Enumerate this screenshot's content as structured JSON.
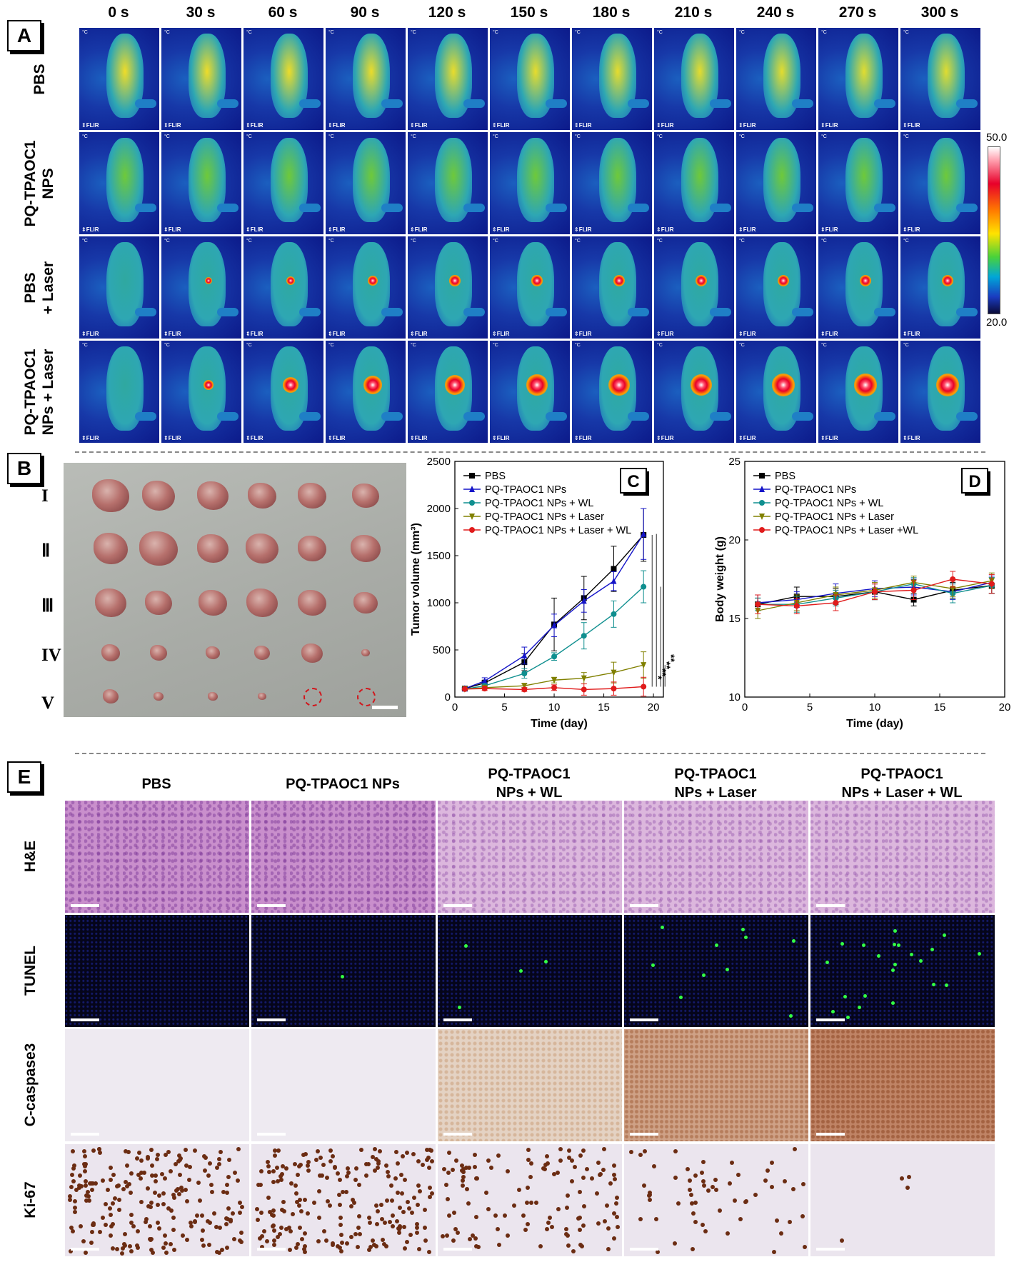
{
  "panels": {
    "a": "A",
    "b": "B",
    "c": "C",
    "d": "D",
    "e": "E"
  },
  "thermal": {
    "times": [
      "0 s",
      "30 s",
      "60 s",
      "90 s",
      "120 s",
      "150 s",
      "180 s",
      "210 s",
      "240 s",
      "270 s",
      "300 s"
    ],
    "groups": [
      "PBS",
      "PQ-TPAOC1 NPs",
      "PBS + Laser",
      "PQ-TPAOC1 NPs + Laser"
    ],
    "hotspot_level": [
      [
        0,
        0,
        0,
        0,
        0,
        0,
        0,
        0,
        0,
        0,
        0
      ],
      [
        0,
        0,
        0,
        0,
        0,
        0,
        0,
        0,
        0,
        0,
        0
      ],
      [
        0,
        0.15,
        0.25,
        0.3,
        0.35,
        0.35,
        0.38,
        0.4,
        0.4,
        0.4,
        0.42
      ],
      [
        0,
        0.3,
        0.6,
        0.75,
        0.85,
        0.9,
        0.92,
        0.95,
        0.97,
        0.98,
        1.0
      ]
    ],
    "camera_mark": "⇕FLIR",
    "unit_mark": "°C",
    "colorbar_max": "50.0",
    "colorbar_min": "20.0"
  },
  "photo": {
    "groups": [
      "I",
      "II",
      "III",
      "IV",
      "V"
    ],
    "tumor_counts": [
      6,
      6,
      6,
      6,
      4
    ],
    "absent_in_group_V": 2
  },
  "chart_data": [
    {
      "type": "line",
      "panel": "C",
      "xlabel": "Time (day)",
      "ylabel": "Tumor volume (mm³)",
      "xlim": [
        0,
        21
      ],
      "ylim": [
        0,
        2500
      ],
      "xticks": [
        0,
        5,
        10,
        15,
        20
      ],
      "yticks": [
        0,
        500,
        1000,
        1500,
        2000,
        2500
      ],
      "legend_position": "top-left",
      "x": [
        1,
        3,
        7,
        10,
        13,
        16,
        19
      ],
      "series": [
        {
          "name": "PBS",
          "color": "#000000",
          "marker": "square",
          "values": [
            90,
            150,
            370,
            770,
            1050,
            1360,
            1720
          ],
          "err": [
            10,
            30,
            90,
            280,
            230,
            240,
            280
          ]
        },
        {
          "name": "PQ-TPAOC1 NPs",
          "color": "#1414c8",
          "marker": "triangle-up",
          "values": [
            90,
            170,
            440,
            760,
            1020,
            1230,
            1730
          ],
          "err": [
            10,
            35,
            90,
            120,
            120,
            100,
            270
          ]
        },
        {
          "name": "PQ-TPAOC1 NPs + WL",
          "color": "#0f8f8f",
          "marker": "circle",
          "values": [
            85,
            120,
            250,
            430,
            650,
            880,
            1170
          ],
          "err": [
            10,
            20,
            50,
            40,
            140,
            140,
            170
          ]
        },
        {
          "name": "PQ-TPAOC1 NPs + Laser",
          "color": "#808000",
          "marker": "triangle-down",
          "values": [
            85,
            100,
            120,
            180,
            200,
            260,
            340
          ],
          "err": [
            10,
            10,
            20,
            30,
            60,
            110,
            140
          ]
        },
        {
          "name": "PQ-TPAOC1 NPs + Laser + WL",
          "color": "#e01b1b",
          "marker": "circle",
          "values": [
            85,
            90,
            80,
            100,
            80,
            90,
            110
          ],
          "err": [
            10,
            20,
            20,
            30,
            60,
            70,
            100
          ]
        }
      ],
      "significance": [
        "*",
        "**",
        "**",
        "**"
      ]
    },
    {
      "type": "line",
      "panel": "D",
      "xlabel": "Time (day)",
      "ylabel": "Body weight (g)",
      "xlim": [
        0,
        20
      ],
      "ylim": [
        10,
        25
      ],
      "xticks": [
        0,
        5,
        10,
        15,
        20
      ],
      "yticks": [
        10,
        15,
        20,
        25
      ],
      "legend_position": "top-left",
      "x": [
        1,
        4,
        7,
        10,
        13,
        16,
        19
      ],
      "series": [
        {
          "name": "PBS",
          "color": "#000000",
          "marker": "square",
          "values": [
            15.9,
            16.4,
            16.4,
            16.7,
            16.2,
            16.8,
            17.1
          ],
          "err": [
            0.4,
            0.6,
            0.5,
            0.5,
            0.4,
            0.5,
            0.5
          ]
        },
        {
          "name": "PQ-TPAOC1 NPs",
          "color": "#1414c8",
          "marker": "triangle-up",
          "values": [
            16.0,
            16.2,
            16.6,
            16.9,
            17.0,
            16.7,
            17.3
          ],
          "err": [
            0.5,
            0.5,
            0.6,
            0.5,
            0.5,
            0.5,
            0.4
          ]
        },
        {
          "name": "PQ-TPAOC1 NPs + WL",
          "color": "#0f8f8f",
          "marker": "circle",
          "values": [
            15.9,
            15.9,
            16.3,
            16.7,
            17.2,
            16.6,
            17.1
          ],
          "err": [
            0.4,
            0.5,
            0.5,
            0.5,
            0.4,
            0.6,
            0.5
          ]
        },
        {
          "name": "PQ-TPAOC1 NPs + Laser",
          "color": "#808000",
          "marker": "triangle-down",
          "values": [
            15.5,
            16.0,
            16.5,
            16.8,
            17.3,
            16.9,
            17.4
          ],
          "err": [
            0.5,
            0.5,
            0.5,
            0.5,
            0.4,
            0.5,
            0.5
          ]
        },
        {
          "name": "PQ-TPAOC1 NPs + Laser +WL",
          "color": "#e01b1b",
          "marker": "circle",
          "values": [
            15.9,
            15.8,
            16.0,
            16.7,
            16.8,
            17.5,
            17.2
          ],
          "err": [
            0.6,
            0.5,
            0.5,
            0.5,
            0.6,
            0.5,
            0.6
          ]
        }
      ]
    }
  ],
  "histology": {
    "columns": [
      "PBS",
      "PQ-TPAOC1 NPs",
      "PQ-TPAOC1 NPs + WL",
      "PQ-TPAOC1 NPs + Laser",
      "PQ-TPAOC1 NPs + Laser + WL"
    ],
    "column_lines": [
      [
        "PBS"
      ],
      [
        "PQ-TPAOC1 NPs"
      ],
      [
        "PQ-TPAOC1",
        "NPs + WL"
      ],
      [
        "PQ-TPAOC1",
        "NPs + Laser"
      ],
      [
        "PQ-TPAOC1",
        "NPs + Laser + WL"
      ]
    ],
    "rows": [
      "H&E",
      "TUNEL",
      "C-caspase3",
      "Ki-67"
    ],
    "tunel_positive_dots": [
      0,
      1,
      4,
      10,
      22
    ],
    "caspase_intensity": [
      0,
      0,
      1,
      2,
      3
    ],
    "ki67_dots": [
      220,
      210,
      120,
      60,
      4
    ]
  }
}
